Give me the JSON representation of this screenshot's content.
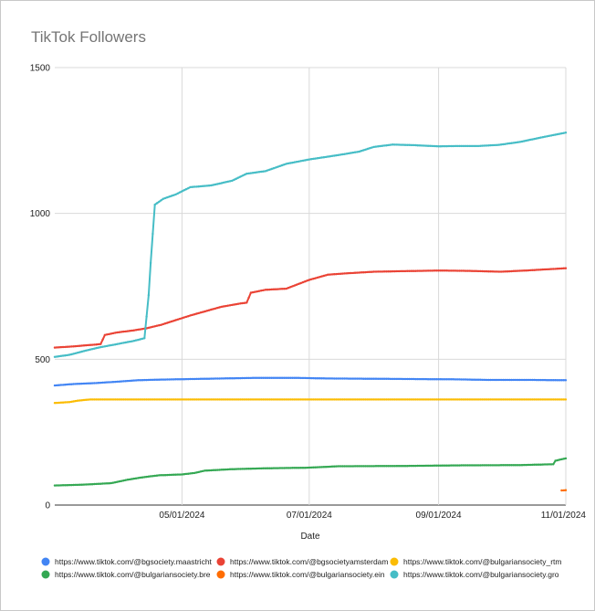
{
  "chart_data": {
    "type": "line",
    "title": "TikTok Followers",
    "xlabel": "Date",
    "ylabel": "",
    "ylim": [
      0,
      1500
    ],
    "xlim": [
      "2024-03-01",
      "2024-11-01"
    ],
    "y_ticks": [
      "0",
      "500",
      "1000",
      "1500"
    ],
    "x_ticks": [
      {
        "date": "2024-05-01",
        "label": "05/01/2024"
      },
      {
        "date": "2024-07-01",
        "label": "07/01/2024"
      },
      {
        "date": "2024-09-01",
        "label": "09/01/2024"
      },
      {
        "date": "2024-11-01",
        "label": "11/01/2024"
      }
    ],
    "grid": true,
    "legend_position": "bottom",
    "series": [
      {
        "name": "https://www.tiktok.com/@bgsociety.maastricht",
        "color": "#4285f4",
        "points": [
          [
            "2024-03-01",
            410
          ],
          [
            "2024-03-10",
            415
          ],
          [
            "2024-03-20",
            418
          ],
          [
            "2024-03-31",
            423
          ],
          [
            "2024-04-10",
            428
          ],
          [
            "2024-04-20",
            430
          ],
          [
            "2024-05-05",
            432
          ],
          [
            "2024-05-20",
            434
          ],
          [
            "2024-06-05",
            436
          ],
          [
            "2024-06-25",
            436
          ],
          [
            "2024-07-10",
            434
          ],
          [
            "2024-08-01",
            433
          ],
          [
            "2024-08-20",
            432
          ],
          [
            "2024-09-10",
            431
          ],
          [
            "2024-09-25",
            429
          ],
          [
            "2024-10-15",
            429
          ],
          [
            "2024-11-01",
            428
          ]
        ]
      },
      {
        "name": "https://www.tiktok.com/@bgsocietyamsterdam",
        "color": "#ea4335",
        "points": [
          [
            "2024-03-01",
            540
          ],
          [
            "2024-03-10",
            544
          ],
          [
            "2024-03-20",
            550
          ],
          [
            "2024-03-23",
            552
          ],
          [
            "2024-03-25",
            583
          ],
          [
            "2024-03-31",
            592
          ],
          [
            "2024-04-07",
            598
          ],
          [
            "2024-04-14",
            606
          ],
          [
            "2024-04-21",
            618
          ],
          [
            "2024-04-28",
            634
          ],
          [
            "2024-05-05",
            650
          ],
          [
            "2024-05-12",
            664
          ],
          [
            "2024-05-20",
            680
          ],
          [
            "2024-05-28",
            690
          ],
          [
            "2024-06-01",
            694
          ],
          [
            "2024-06-03",
            728
          ],
          [
            "2024-06-10",
            738
          ],
          [
            "2024-06-20",
            742
          ],
          [
            "2024-07-01",
            772
          ],
          [
            "2024-07-10",
            790
          ],
          [
            "2024-07-20",
            795
          ],
          [
            "2024-08-01",
            800
          ],
          [
            "2024-08-15",
            802
          ],
          [
            "2024-09-01",
            804
          ],
          [
            "2024-09-15",
            803
          ],
          [
            "2024-10-01",
            800
          ],
          [
            "2024-10-15",
            805
          ],
          [
            "2024-11-01",
            812
          ]
        ]
      },
      {
        "name": "https://www.tiktok.com/@bulgariansociety_rtm",
        "color": "#fbbc04",
        "points": [
          [
            "2024-03-01",
            350
          ],
          [
            "2024-03-08",
            353
          ],
          [
            "2024-03-12",
            358
          ],
          [
            "2024-03-18",
            362
          ],
          [
            "2024-04-15",
            362
          ],
          [
            "2024-06-01",
            362
          ],
          [
            "2024-08-01",
            362
          ],
          [
            "2024-10-01",
            362
          ],
          [
            "2024-11-01",
            362
          ]
        ]
      },
      {
        "name": "https://www.tiktok.com/@bulgariansociety.bre",
        "color": "#34a853",
        "points": [
          [
            "2024-03-01",
            67
          ],
          [
            "2024-03-15",
            70
          ],
          [
            "2024-03-28",
            75
          ],
          [
            "2024-04-05",
            87
          ],
          [
            "2024-04-12",
            95
          ],
          [
            "2024-04-20",
            102
          ],
          [
            "2024-05-01",
            105
          ],
          [
            "2024-05-07",
            110
          ],
          [
            "2024-05-12",
            118
          ],
          [
            "2024-05-25",
            123
          ],
          [
            "2024-06-10",
            126
          ],
          [
            "2024-06-30",
            128
          ],
          [
            "2024-07-15",
            133
          ],
          [
            "2024-08-15",
            134
          ],
          [
            "2024-09-10",
            136
          ],
          [
            "2024-10-10",
            137
          ],
          [
            "2024-10-26",
            140
          ],
          [
            "2024-10-27",
            152
          ],
          [
            "2024-11-01",
            160
          ]
        ]
      },
      {
        "name": "https://www.tiktok.com/@bulgariansociety.ein",
        "color": "#ff6d01",
        "points": [
          [
            "2024-10-30",
            50
          ],
          [
            "2024-11-01",
            51
          ]
        ]
      },
      {
        "name": "https://www.tiktok.com/@bulgariansociety.gro",
        "color": "#46bdc6",
        "points": [
          [
            "2024-03-01",
            508
          ],
          [
            "2024-03-08",
            515
          ],
          [
            "2024-03-15",
            528
          ],
          [
            "2024-03-22",
            540
          ],
          [
            "2024-03-31",
            552
          ],
          [
            "2024-04-08",
            563
          ],
          [
            "2024-04-13",
            572
          ],
          [
            "2024-04-15",
            720
          ],
          [
            "2024-04-16",
            830
          ],
          [
            "2024-04-17",
            930
          ],
          [
            "2024-04-18",
            1030
          ],
          [
            "2024-04-22",
            1050
          ],
          [
            "2024-04-28",
            1065
          ],
          [
            "2024-05-05",
            1090
          ],
          [
            "2024-05-15",
            1096
          ],
          [
            "2024-05-25",
            1112
          ],
          [
            "2024-06-01",
            1136
          ],
          [
            "2024-06-10",
            1145
          ],
          [
            "2024-06-20",
            1170
          ],
          [
            "2024-07-01",
            1185
          ],
          [
            "2024-07-15",
            1200
          ],
          [
            "2024-07-25",
            1212
          ],
          [
            "2024-08-01",
            1228
          ],
          [
            "2024-08-10",
            1236
          ],
          [
            "2024-08-20",
            1234
          ],
          [
            "2024-09-01",
            1230
          ],
          [
            "2024-09-10",
            1231
          ],
          [
            "2024-09-20",
            1231
          ],
          [
            "2024-09-30",
            1235
          ],
          [
            "2024-10-10",
            1245
          ],
          [
            "2024-10-20",
            1260
          ],
          [
            "2024-11-01",
            1277
          ]
        ]
      }
    ]
  }
}
